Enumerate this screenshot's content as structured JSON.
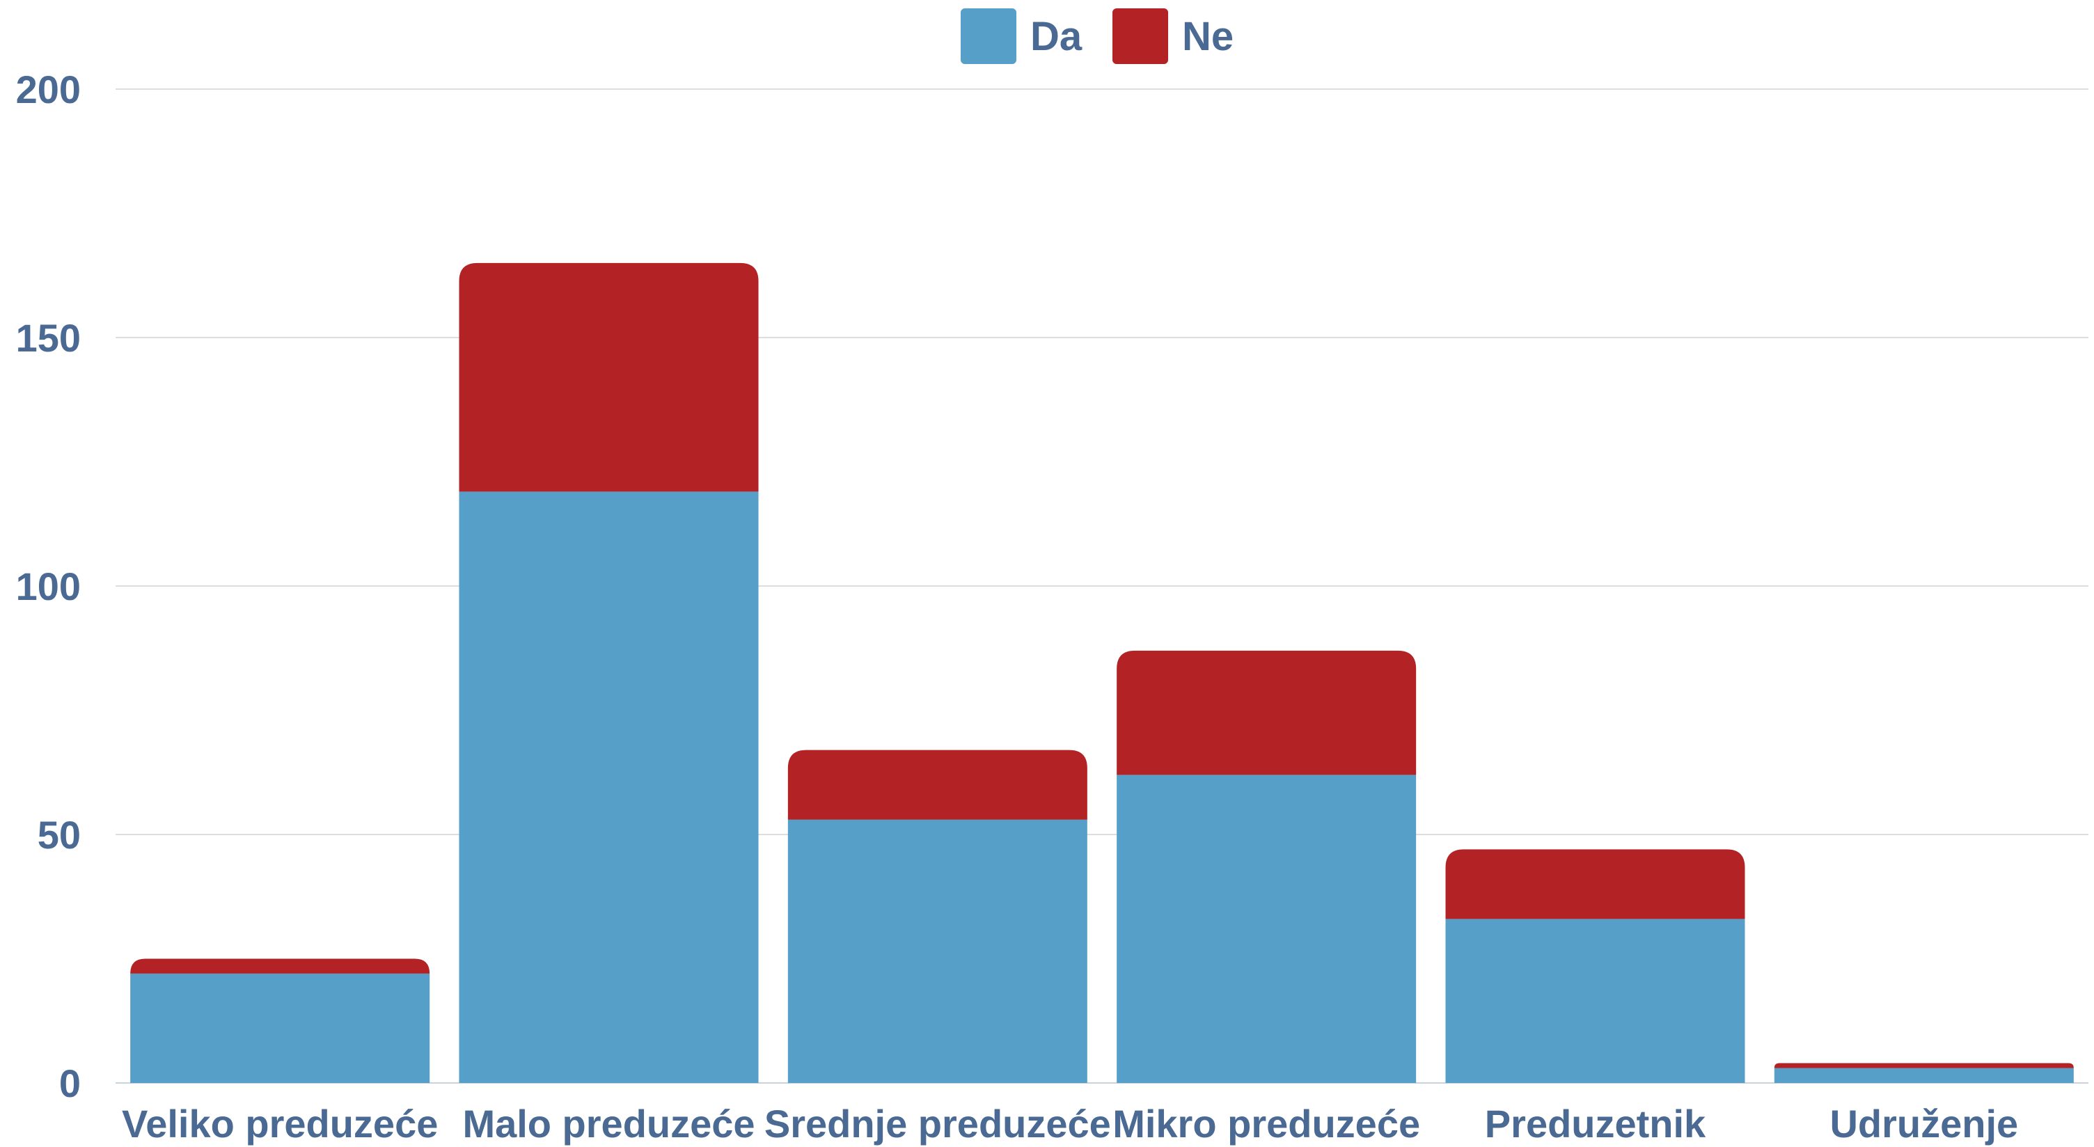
{
  "chart_data": {
    "type": "bar",
    "stacked": true,
    "categories": [
      "Veliko preduzeće",
      "Malo preduzeće",
      "Srednje preduzeće",
      "Mikro preduzeće",
      "Preduzetnik",
      "Udruženje"
    ],
    "series": [
      {
        "name": "Da",
        "color": "#569FC9",
        "values": [
          22,
          119,
          53,
          62,
          33,
          3
        ]
      },
      {
        "name": "Ne",
        "color": "#B32225",
        "values": [
          3,
          46,
          14,
          25,
          14,
          1
        ]
      }
    ],
    "y_ticks": [
      0,
      50,
      100,
      150,
      200
    ],
    "ylim": [
      0,
      200
    ],
    "grid": true,
    "legend_position": "top-center"
  },
  "colors": {
    "axis_text": "#4A6A94",
    "grid": "#DDDDDD"
  }
}
